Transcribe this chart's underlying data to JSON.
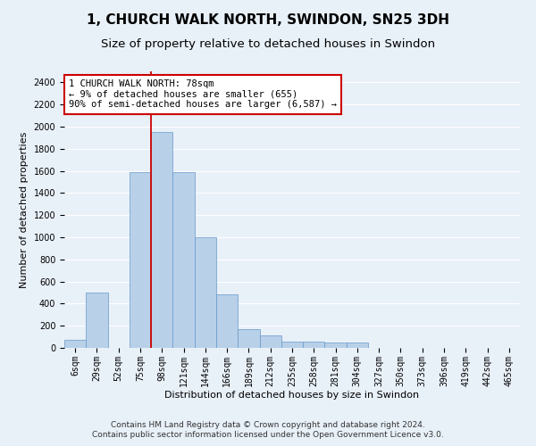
{
  "title_line1": "1, CHURCH WALK NORTH, SWINDON, SN25 3DH",
  "title_line2": "Size of property relative to detached houses in Swindon",
  "xlabel": "Distribution of detached houses by size in Swindon",
  "ylabel": "Number of detached properties",
  "bar_color": "#b8d0e8",
  "bar_edge_color": "#6699cc",
  "categories": [
    "6sqm",
    "29sqm",
    "52sqm",
    "75sqm",
    "98sqm",
    "121sqm",
    "144sqm",
    "166sqm",
    "189sqm",
    "212sqm",
    "235sqm",
    "258sqm",
    "281sqm",
    "304sqm",
    "327sqm",
    "350sqm",
    "373sqm",
    "396sqm",
    "419sqm",
    "442sqm",
    "465sqm"
  ],
  "values": [
    70,
    500,
    0,
    1590,
    1950,
    1590,
    1000,
    480,
    170,
    110,
    60,
    60,
    50,
    50,
    0,
    0,
    0,
    0,
    0,
    0,
    0
  ],
  "ylim": [
    0,
    2500
  ],
  "yticks": [
    0,
    200,
    400,
    600,
    800,
    1000,
    1200,
    1400,
    1600,
    1800,
    2000,
    2200,
    2400
  ],
  "annotation_text": "1 CHURCH WALK NORTH: 78sqm\n← 9% of detached houses are smaller (655)\n90% of semi-detached houses are larger (6,587) →",
  "annotation_box_color": "#ffffff",
  "annotation_box_edge_color": "#cc0000",
  "vline_color": "#cc0000",
  "vline_x_index": 3.5,
  "footer_line1": "Contains HM Land Registry data © Crown copyright and database right 2024.",
  "footer_line2": "Contains public sector information licensed under the Open Government Licence v3.0.",
  "background_color": "#e8f0f8",
  "plot_background_color": "#e8f0f8",
  "grid_color": "#ffffff",
  "title_fontsize": 11,
  "subtitle_fontsize": 9.5,
  "axis_label_fontsize": 8,
  "tick_fontsize": 7,
  "footer_fontsize": 6.5,
  "annotation_fontsize": 7.5
}
